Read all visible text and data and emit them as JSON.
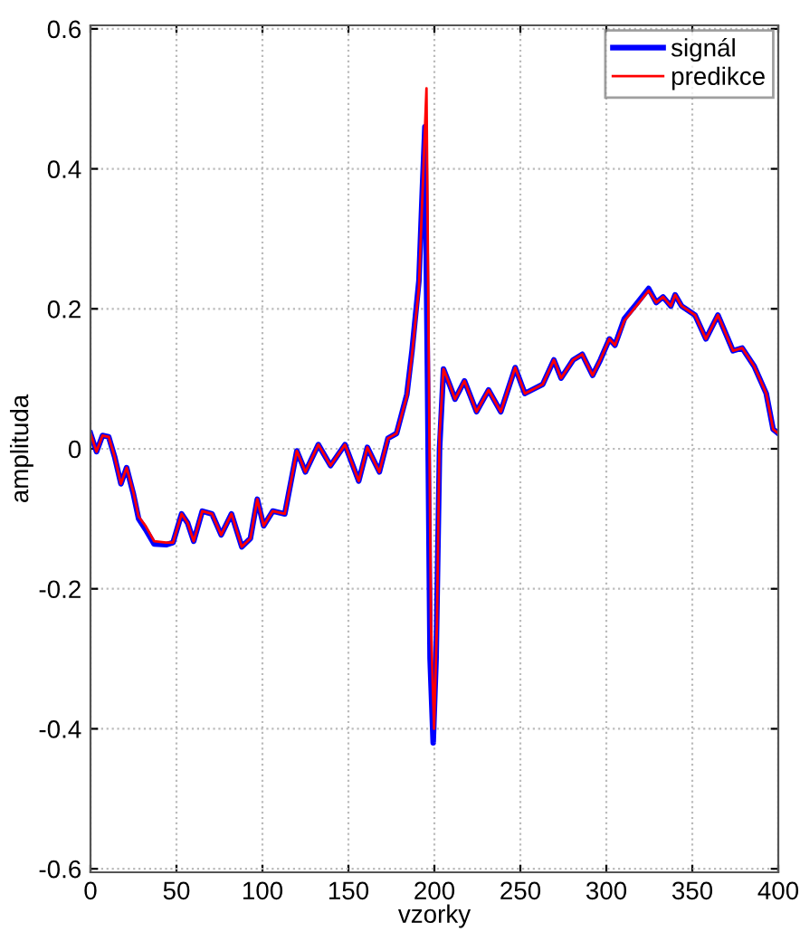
{
  "chart_data": {
    "type": "line",
    "xlabel": "vzorky",
    "ylabel": "amplituda",
    "xlim": [
      0,
      400
    ],
    "xticks": [
      0,
      50,
      100,
      150,
      200,
      250,
      300,
      350,
      400
    ],
    "ylim": [
      -0.605,
      0.605
    ],
    "yticks": [
      {
        "value": -0.6,
        "label": "-0.6"
      },
      {
        "value": -0.4,
        "label": "-0.4"
      },
      {
        "value": -0.2,
        "label": "-0.2"
      },
      0,
      0.2,
      0.4,
      0.6
    ],
    "grid": true,
    "legend": "top right",
    "line_style": "solid",
    "marker": "none",
    "series": [
      {
        "name": "signál",
        "color": "#0000ff",
        "x": [
          0,
          3.5,
          7,
          10.6,
          14,
          17.7,
          21,
          25,
          28,
          32,
          37,
          44,
          48,
          53,
          56.5,
          60,
          65,
          70.7,
          76,
          82,
          88,
          93,
          97,
          100.7,
          106,
          113,
          120,
          125,
          132.5,
          139.6,
          148,
          156,
          161,
          168,
          173,
          178,
          184,
          187,
          191,
          193,
          194.5,
          196,
          197.5,
          199.3,
          201,
          203,
          205.3,
          208.8,
          212,
          217.5,
          224.5,
          231.5,
          238.6,
          247,
          252.6,
          263,
          269.5,
          273.7,
          280.7,
          286,
          292,
          296.5,
          301.8,
          305,
          310.5,
          317.5,
          324.6,
          329,
          333,
          337.5,
          340,
          343.8,
          351.6,
          357.9,
          364.9,
          373.7,
          379,
          386,
          393,
          397,
          400
        ],
        "values": [
          0.022,
          -0.004,
          0.019,
          0.017,
          -0.011,
          -0.05,
          -0.027,
          -0.065,
          -0.1,
          -0.115,
          -0.136,
          -0.137,
          -0.134,
          -0.093,
          -0.106,
          -0.132,
          -0.089,
          -0.093,
          -0.123,
          -0.093,
          -0.14,
          -0.128,
          -0.072,
          -0.11,
          -0.089,
          -0.093,
          -0.003,
          -0.033,
          0.006,
          -0.024,
          0.006,
          -0.046,
          0.002,
          -0.033,
          0.015,
          0.022,
          0.078,
          0.14,
          0.24,
          0.37,
          0.46,
          0.1,
          -0.3,
          -0.42,
          -0.3,
          0.0,
          0.114,
          0.092,
          0.071,
          0.097,
          0.053,
          0.084,
          0.053,
          0.116,
          0.079,
          0.092,
          0.127,
          0.101,
          0.127,
          0.135,
          0.105,
          0.127,
          0.157,
          0.148,
          0.186,
          0.207,
          0.229,
          0.209,
          0.217,
          0.204,
          0.22,
          0.204,
          0.191,
          0.157,
          0.191,
          0.14,
          0.144,
          0.118,
          0.079,
          0.028,
          0.022
        ]
      },
      {
        "name": "predikce",
        "color": "#ff0000",
        "x": [
          0,
          3.5,
          7,
          10.6,
          14,
          17.7,
          21,
          25,
          28,
          32,
          37,
          44,
          48,
          53,
          56.5,
          60,
          65,
          70.7,
          76,
          82,
          88,
          93,
          97,
          100.7,
          106,
          113,
          120,
          125,
          132.5,
          139.6,
          148,
          156,
          161,
          168,
          173,
          178,
          184,
          187,
          191,
          193,
          195.4,
          196.5,
          198,
          199.8,
          201.5,
          203,
          205.3,
          208.8,
          212,
          217.5,
          224.5,
          231.5,
          238.6,
          247,
          252.6,
          263,
          269.5,
          273.7,
          280.7,
          286,
          292,
          296.5,
          301.8,
          305,
          310.5,
          317.5,
          324.6,
          329,
          333,
          337.5,
          340,
          343.8,
          351.6,
          357.9,
          364.9,
          373.7,
          379,
          386,
          393,
          397,
          400
        ],
        "values": [
          0.022,
          -0.004,
          0.019,
          0.017,
          -0.011,
          -0.05,
          -0.027,
          -0.063,
          -0.097,
          -0.11,
          -0.132,
          -0.134,
          -0.134,
          -0.093,
          -0.106,
          -0.132,
          -0.089,
          -0.093,
          -0.123,
          -0.093,
          -0.14,
          -0.128,
          -0.072,
          -0.11,
          -0.089,
          -0.093,
          -0.003,
          -0.033,
          0.006,
          -0.024,
          0.006,
          -0.046,
          0.002,
          -0.033,
          0.015,
          0.022,
          0.075,
          0.135,
          0.23,
          0.36,
          0.515,
          0.2,
          -0.25,
          -0.4,
          -0.25,
          0.02,
          0.114,
          0.092,
          0.071,
          0.097,
          0.053,
          0.084,
          0.053,
          0.116,
          0.079,
          0.092,
          0.127,
          0.101,
          0.127,
          0.135,
          0.105,
          0.127,
          0.157,
          0.148,
          0.183,
          0.204,
          0.226,
          0.209,
          0.217,
          0.204,
          0.22,
          0.204,
          0.191,
          0.157,
          0.191,
          0.14,
          0.144,
          0.118,
          0.079,
          0.028,
          0.022
        ]
      }
    ]
  }
}
